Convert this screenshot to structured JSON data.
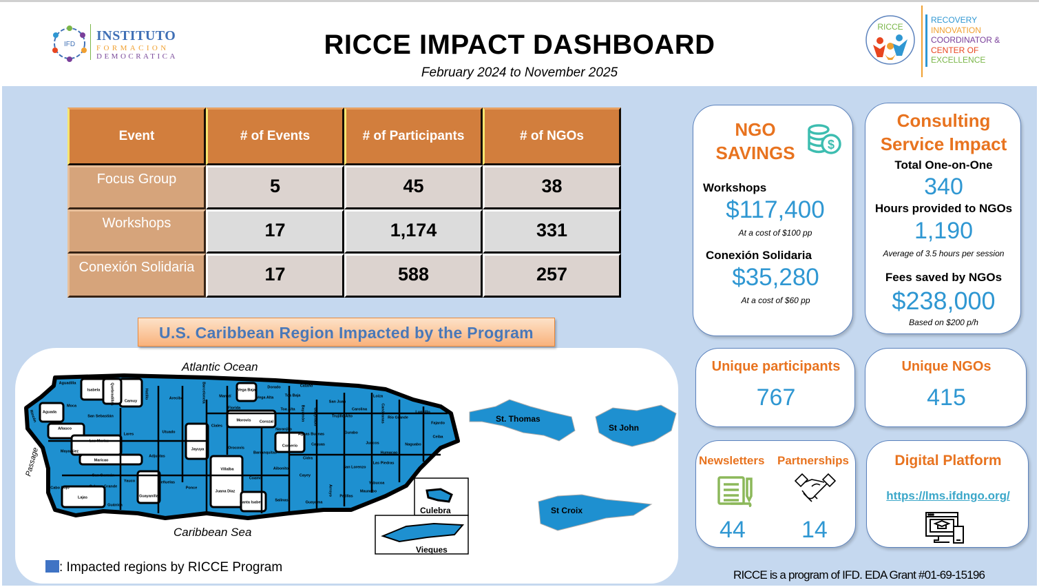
{
  "header": {
    "title": "RICCE IMPACT DASHBOARD",
    "subtitle": "February 2024 to November 2025",
    "ifd_logo": {
      "badge": "IFD",
      "line1": "INSTITUTO",
      "line2": "FORMACION",
      "line3": "DEMOCRATICA"
    },
    "ricce_logo": {
      "badge": "RICCE",
      "lines": [
        {
          "text": "RECOVERY",
          "color": "#2f97d2"
        },
        {
          "text": "INNOVATION",
          "color": "#f0a030"
        },
        {
          "text": "COORDINATOR &",
          "color": "#7a3f9a"
        },
        {
          "text": "CENTER OF",
          "color": "#e8451f"
        },
        {
          "text": "EXCELLENCE",
          "color": "#7ab648"
        }
      ]
    }
  },
  "events_table": {
    "headers": [
      "Event",
      "# of Events",
      "# of Participants",
      "# of NGOs"
    ],
    "rows": [
      {
        "event": "Focus Group",
        "events": "5",
        "participants": "45",
        "ngos": "38"
      },
      {
        "event": "Workshops",
        "events": "17",
        "participants": "1,174",
        "ngos": "331"
      },
      {
        "event": "Conexión Solidaria",
        "events": "17",
        "participants": "588",
        "ngos": "257"
      }
    ]
  },
  "map": {
    "banner": "U.S. Caribbean Region Impacted by the Program",
    "atlantic": "Atlantic Ocean",
    "caribbean": "Caribbean Sea",
    "passage": "Passage",
    "islands": [
      "St. Thomas",
      "St John",
      "St Croix",
      "Culebra",
      "Vieques"
    ],
    "municipalities": [
      "Aguadilla",
      "Isabela",
      "Camuy",
      "Arecibo",
      "Manatí",
      "Vega Baja",
      "Moca",
      "Aguada",
      "San Sebastián",
      "Lares",
      "Utuado",
      "Ciales",
      "Morovis",
      "Corozal",
      "Añasco",
      "Las Marías",
      "Mayagüez",
      "Maricao",
      "Adjuntas",
      "Jayuya",
      "Orocovis",
      "Comerío",
      "San Germán",
      "Cabo Rojo",
      "Lajas",
      "Yauco",
      "Guánica",
      "Guayanilla",
      "Peñuelas",
      "Ponce",
      "Villalba",
      "Juana Díaz",
      "Coamo",
      "Santa Isabel",
      "Salinas",
      "Guayama",
      "Cayey",
      "Cidra",
      "Caguas",
      "San Juan",
      "Carolina",
      "Río Grande",
      "Luquillo",
      "Fajardo",
      "Naguabo",
      "Humacao",
      "Yabucoa",
      "Patillas",
      "Maunabo",
      "Arroyo",
      "San Lorenzo",
      "Gurabo",
      "Juncos",
      "Las Piedras",
      "Aibonito",
      "Barranquitas",
      "Toa Alta",
      "Toa Baja",
      "Bayamón",
      "Guaynabo",
      "Trujillo Alto",
      "Aguas Buenas",
      "Naranjito",
      "Loíza",
      "Canóvanas",
      "Ceiba",
      "Vega Alta",
      "Dorado",
      "Cataño",
      "Florida",
      "Hatillo",
      "Quebradillas",
      "Rincón",
      "Sabana Grande",
      "Barceloneta"
    ],
    "legend": ": Impacted regions by RICCE Program",
    "colors": {
      "impacted": "#1e90d0",
      "not_impacted": "#ffffff"
    }
  },
  "ngo_savings": {
    "title_line1": "NGO",
    "title_line2": "SAVINGS",
    "workshops_label": "Workshops",
    "workshops_value": "$117,400",
    "workshops_note": "At a cost of $100 pp",
    "conexion_label": "Conexión Solidaria",
    "conexion_value": "$35,280",
    "conexion_note": "At a cost of $60 pp"
  },
  "consulting": {
    "title_line1": "Consulting",
    "title_line2": "Service Impact",
    "sessions_label": "Total One-on-One",
    "sessions_value": "340",
    "hours_label": "Hours provided to NGOs",
    "hours_value": "1,190",
    "hours_note": "Average of 3.5 hours per session",
    "fees_label": "Fees saved by NGOs",
    "fees_value": "$238,000",
    "fees_note": "Based on $200 p/h"
  },
  "unique_participants": {
    "label": "Unique participants",
    "value": "767"
  },
  "unique_ngos": {
    "label": "Unique NGOs",
    "value": "415"
  },
  "newsletters": {
    "label": "Newsletters",
    "value": "44"
  },
  "partnerships": {
    "label": "Partnerships",
    "value": "14"
  },
  "digital_platform": {
    "label": "Digital Platform",
    "url": "https://lms.ifdngo.org/"
  },
  "footer": "RICCE is a program of IFD. EDA Grant #01-69-15196",
  "colors": {
    "accent_orange": "#e8731f",
    "value_blue": "#2f97d2",
    "background": "#c5d8ef"
  }
}
